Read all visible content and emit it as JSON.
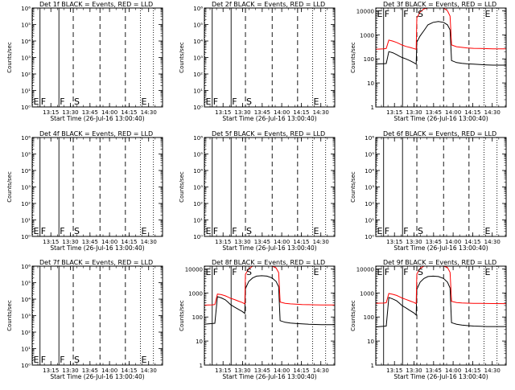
{
  "chart_data": {
    "type": "line",
    "xlabel": "Start Time (26-Jul-16 13:00:40)",
    "ylabel": "Counts/sec",
    "x_tick_labels": [
      "13:15",
      "13:30",
      "13:45",
      "14:00",
      "14:15",
      "14:30"
    ],
    "x_tick_minutes": [
      14.333,
      29.333,
      44.333,
      59.333,
      74.333,
      89.333
    ],
    "xlim_minutes": [
      0,
      100
    ],
    "empty_ytick_labels": [
      "10⁰",
      "10¹",
      "10²",
      "10³",
      "10⁴",
      "10⁵",
      "10⁶"
    ],
    "data_ytick_labels": [
      "1",
      "10",
      "100",
      "1000",
      "10000"
    ],
    "data_ylim": [
      1,
      13000
    ],
    "event_markers": [
      {
        "label": "E",
        "minute": 0.3,
        "style": "dotted"
      },
      {
        "label": "F",
        "minute": 6.0,
        "style": "solid"
      },
      {
        "label": "F",
        "minute": 20.5,
        "style": "solid"
      },
      {
        "label": "S",
        "minute": 31.5,
        "style": "dashed"
      },
      {
        "label": "",
        "minute": 52.0,
        "style": "dashed"
      },
      {
        "label": "",
        "minute": 71.5,
        "style": "dashed"
      },
      {
        "label": "E",
        "minute": 83.0,
        "style": "dotted"
      },
      {
        "label": "",
        "minute": 93.0,
        "style": "dotted"
      }
    ],
    "series_colors": {
      "events": "#000000",
      "lld": "#ff0000"
    },
    "panels": [
      {
        "title": "Det 1f BLACK = Events, RED = LLD",
        "has_data": false
      },
      {
        "title": "Det 2f BLACK = Events, RED = LLD",
        "has_data": false
      },
      {
        "title": "Det 3f BLACK = Events, RED = LLD",
        "has_data": true,
        "series": [
          {
            "name": "Events",
            "x": [
              0,
              3,
              6,
              8,
              10,
              13,
              16,
              18,
              20,
              23,
              26,
              29,
              31,
              31.5,
              34,
              37,
              40,
              44,
              48,
              52,
              55,
              57,
              58,
              58.1,
              62,
              66,
              70,
              75,
              80,
              85,
              90,
              100
            ],
            "y": [
              60,
              62,
              63,
              64,
              200,
              180,
              150,
              130,
              115,
              100,
              85,
              70,
              60,
              500,
              900,
              1500,
              2600,
              3300,
              3600,
              3300,
              2600,
              1600,
              110,
              85,
              70,
              65,
              62,
              60,
              58,
              56,
              55,
              55
            ]
          },
          {
            "name": "LLD",
            "x": [
              0,
              3,
              6,
              8,
              10,
              13,
              16,
              18,
              20,
              23,
              26,
              29,
              31,
              31.5,
              34,
              37,
              40,
              44,
              48,
              52,
              55,
              57,
              58,
              58.1,
              62,
              66,
              70,
              75,
              80,
              85,
              90,
              100
            ],
            "y": [
              250,
              255,
              260,
              270,
              600,
              550,
              480,
              430,
              380,
              330,
              300,
              270,
              250,
              5000,
              9000,
              12000,
              13000,
              13000,
              13000,
              13000,
              10000,
              6000,
              480,
              380,
              320,
              300,
              285,
              275,
              270,
              265,
              262,
              260
            ]
          }
        ]
      },
      {
        "title": "Det 4f BLACK = Events, RED = LLD",
        "has_data": false
      },
      {
        "title": "Det 5f BLACK = Events, RED = LLD",
        "has_data": false
      },
      {
        "title": "Det 6f BLACK = Events, RED = LLD",
        "has_data": false
      },
      {
        "title": "Det 7f BLACK = Events, RED = LLD",
        "has_data": false
      },
      {
        "title": "Det 8f BLACK = Events, RED = LLD",
        "has_data": true,
        "series": [
          {
            "name": "Events",
            "x": [
              0,
              3,
              6,
              8,
              10,
              13,
              16,
              18,
              20,
              23,
              26,
              29,
              31,
              31.5,
              34,
              37,
              40,
              44,
              48,
              52,
              55,
              57,
              58,
              58.1,
              62,
              66,
              70,
              75,
              80,
              85,
              90,
              100
            ],
            "y": [
              50,
              52,
              53,
              55,
              700,
              620,
              520,
              420,
              330,
              260,
              210,
              170,
              140,
              1500,
              3000,
              4200,
              5000,
              5200,
              5000,
              4200,
              3000,
              1800,
              85,
              70,
              60,
              56,
              54,
              52,
              50,
              49,
              48,
              48
            ]
          },
          {
            "name": "LLD",
            "x": [
              0,
              3,
              6,
              8,
              10,
              13,
              16,
              18,
              20,
              23,
              26,
              29,
              31,
              31.5,
              34,
              37,
              40,
              44,
              48,
              52,
              55,
              57,
              58,
              58.1,
              62,
              66,
              70,
              75,
              80,
              85,
              90,
              100
            ],
            "y": [
              310,
              315,
              320,
              330,
              900,
              850,
              760,
              680,
              600,
              530,
              460,
              400,
              350,
              6000,
              10000,
              13000,
              13000,
              13000,
              13000,
              13000,
              11000,
              7000,
              520,
              420,
              370,
              350,
              340,
              330,
              325,
              320,
              318,
              315
            ]
          }
        ]
      },
      {
        "title": "Det 9f BLACK = Events, RED = LLD",
        "has_data": true,
        "series": [
          {
            "name": "Events",
            "x": [
              0,
              3,
              6,
              8,
              10,
              13,
              16,
              18,
              20,
              23,
              26,
              29,
              31,
              31.5,
              34,
              37,
              40,
              44,
              48,
              52,
              55,
              57,
              58,
              58.1,
              62,
              66,
              70,
              75,
              80,
              85,
              90,
              100
            ],
            "y": [
              38,
              40,
              41,
              42,
              650,
              560,
              470,
              380,
              300,
              240,
              190,
              150,
              120,
              1400,
              2800,
              4000,
              4800,
              5000,
              4800,
              4000,
              2800,
              1600,
              70,
              58,
              50,
              46,
              44,
              42,
              41,
              40,
              40,
              40
            ]
          },
          {
            "name": "LLD",
            "x": [
              0,
              3,
              6,
              8,
              10,
              13,
              16,
              18,
              20,
              23,
              26,
              29,
              31,
              31.5,
              34,
              37,
              40,
              44,
              48,
              52,
              55,
              57,
              58,
              58.1,
              62,
              66,
              70,
              75,
              80,
              85,
              90,
              100
            ],
            "y": [
              370,
              375,
              380,
              390,
              950,
              880,
              790,
              700,
              620,
              540,
              470,
              410,
              360,
              6200,
              10500,
              13000,
              13000,
              13000,
              13000,
              13000,
              11500,
              7200,
              560,
              450,
              400,
              385,
              375,
              370,
              368,
              365,
              362,
              360
            ]
          }
        ]
      }
    ]
  }
}
